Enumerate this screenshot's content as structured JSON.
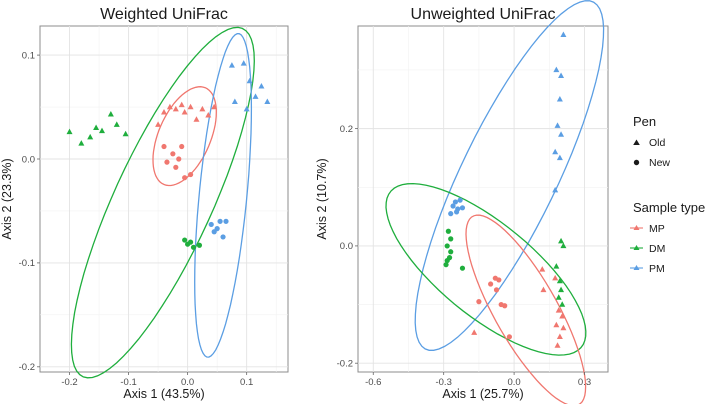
{
  "colors": {
    "MP": "#f0776f",
    "DM": "#1fae3d",
    "PM": "#5b9ee3"
  },
  "legend": {
    "pen_title": "Pen",
    "pen_items": [
      {
        "label": "Old",
        "shape": "triangle"
      },
      {
        "label": "New",
        "shape": "circle"
      }
    ],
    "type_title": "Sample type",
    "type_items": [
      {
        "label": "MP",
        "key": "MP"
      },
      {
        "label": "DM",
        "key": "DM"
      },
      {
        "label": "PM",
        "key": "PM"
      }
    ]
  },
  "chart_data": [
    {
      "type": "scatter",
      "title": "Weighted UniFrac",
      "xlabel": "Axis 1 (43.5%)",
      "ylabel": "Axis 2 (23.3%)",
      "xlim": [
        -0.25,
        0.17
      ],
      "ylim": [
        -0.205,
        0.128
      ],
      "xticks": [
        -0.2,
        -0.1,
        0.0,
        0.1
      ],
      "xticklabels": [
        "-0.2",
        "-0.1",
        "0.0",
        "0.1"
      ],
      "yticks": [
        -0.2,
        -0.1,
        0.0,
        0.1
      ],
      "yticklabels": [
        "-0.2",
        "-0.1",
        "0.0",
        "0.1"
      ],
      "ellipses": [
        {
          "group": "DM",
          "cx": -0.042,
          "cy": -0.042,
          "rx": 0.218,
          "ry": 0.07,
          "angle": 48
        },
        {
          "group": "MP",
          "cx": -0.005,
          "cy": 0.022,
          "rx": 0.062,
          "ry": 0.036,
          "angle": 38
        },
        {
          "group": "PM",
          "cx": 0.06,
          "cy": -0.035,
          "rx": 0.158,
          "ry": 0.04,
          "angle": 80
        }
      ],
      "points": [
        {
          "group": "DM",
          "pen": "Old",
          "x": -0.2,
          "y": 0.026
        },
        {
          "group": "DM",
          "pen": "Old",
          "x": -0.18,
          "y": 0.015
        },
        {
          "group": "DM",
          "pen": "Old",
          "x": -0.165,
          "y": 0.021
        },
        {
          "group": "DM",
          "pen": "Old",
          "x": -0.155,
          "y": 0.03
        },
        {
          "group": "DM",
          "pen": "Old",
          "x": -0.145,
          "y": 0.027
        },
        {
          "group": "DM",
          "pen": "Old",
          "x": -0.13,
          "y": 0.043
        },
        {
          "group": "DM",
          "pen": "Old",
          "x": -0.12,
          "y": 0.033
        },
        {
          "group": "DM",
          "pen": "Old",
          "x": -0.105,
          "y": 0.024
        },
        {
          "group": "DM",
          "pen": "New",
          "x": -0.005,
          "y": -0.078
        },
        {
          "group": "DM",
          "pen": "New",
          "x": 0.0,
          "y": -0.082
        },
        {
          "group": "DM",
          "pen": "New",
          "x": 0.005,
          "y": -0.08
        },
        {
          "group": "DM",
          "pen": "New",
          "x": 0.01,
          "y": -0.085
        },
        {
          "group": "DM",
          "pen": "New",
          "x": 0.02,
          "y": -0.083
        },
        {
          "group": "MP",
          "pen": "Old",
          "x": -0.05,
          "y": 0.033
        },
        {
          "group": "MP",
          "pen": "Old",
          "x": -0.04,
          "y": 0.045
        },
        {
          "group": "MP",
          "pen": "Old",
          "x": -0.03,
          "y": 0.05
        },
        {
          "group": "MP",
          "pen": "Old",
          "x": -0.02,
          "y": 0.048
        },
        {
          "group": "MP",
          "pen": "Old",
          "x": -0.01,
          "y": 0.052
        },
        {
          "group": "MP",
          "pen": "Old",
          "x": -0.005,
          "y": 0.045
        },
        {
          "group": "MP",
          "pen": "Old",
          "x": 0.005,
          "y": 0.05
        },
        {
          "group": "MP",
          "pen": "Old",
          "x": 0.015,
          "y": 0.038
        },
        {
          "group": "MP",
          "pen": "Old",
          "x": 0.025,
          "y": 0.048
        },
        {
          "group": "MP",
          "pen": "Old",
          "x": 0.035,
          "y": 0.042
        },
        {
          "group": "MP",
          "pen": "Old",
          "x": 0.045,
          "y": 0.05
        },
        {
          "group": "MP",
          "pen": "New",
          "x": -0.04,
          "y": 0.012
        },
        {
          "group": "MP",
          "pen": "New",
          "x": -0.035,
          "y": -0.003
        },
        {
          "group": "MP",
          "pen": "New",
          "x": -0.025,
          "y": 0.005
        },
        {
          "group": "MP",
          "pen": "New",
          "x": -0.02,
          "y": -0.008
        },
        {
          "group": "MP",
          "pen": "New",
          "x": -0.015,
          "y": 0.0
        },
        {
          "group": "MP",
          "pen": "New",
          "x": -0.01,
          "y": 0.012
        },
        {
          "group": "MP",
          "pen": "New",
          "x": 0.005,
          "y": -0.015
        },
        {
          "group": "MP",
          "pen": "New",
          "x": -0.005,
          "y": -0.018
        },
        {
          "group": "PM",
          "pen": "Old",
          "x": 0.075,
          "y": 0.09
        },
        {
          "group": "PM",
          "pen": "Old",
          "x": 0.08,
          "y": 0.055
        },
        {
          "group": "PM",
          "pen": "Old",
          "x": 0.095,
          "y": 0.092
        },
        {
          "group": "PM",
          "pen": "Old",
          "x": 0.105,
          "y": 0.075
        },
        {
          "group": "PM",
          "pen": "Old",
          "x": 0.115,
          "y": 0.06
        },
        {
          "group": "PM",
          "pen": "Old",
          "x": 0.125,
          "y": 0.07
        },
        {
          "group": "PM",
          "pen": "Old",
          "x": 0.135,
          "y": 0.055
        },
        {
          "group": "PM",
          "pen": "Old",
          "x": 0.1,
          "y": 0.048
        },
        {
          "group": "PM",
          "pen": "New",
          "x": 0.04,
          "y": -0.063
        },
        {
          "group": "PM",
          "pen": "New",
          "x": 0.045,
          "y": -0.07
        },
        {
          "group": "PM",
          "pen": "New",
          "x": 0.05,
          "y": -0.067
        },
        {
          "group": "PM",
          "pen": "New",
          "x": 0.055,
          "y": -0.06
        },
        {
          "group": "PM",
          "pen": "New",
          "x": 0.06,
          "y": -0.075
        },
        {
          "group": "PM",
          "pen": "New",
          "x": 0.065,
          "y": -0.06
        }
      ]
    },
    {
      "type": "scatter",
      "title": "Unweighted UniFrac",
      "xlabel": "Axis 1 (25.7%)",
      "ylabel": "Axis 2 (10.7%)",
      "xlim": [
        -0.665,
        0.4
      ],
      "ylim": [
        -0.215,
        0.375
      ],
      "xticks": [
        -0.6,
        -0.3,
        0.0,
        0.3
      ],
      "xticklabels": [
        "-0.6",
        "-0.3",
        "0.0",
        "0.3"
      ],
      "yticks": [
        -0.2,
        0.0,
        0.2
      ],
      "yticklabels": [
        "-0.2",
        "0.0",
        "0.2"
      ],
      "ellipses": [
        {
          "group": "PM",
          "cx": -0.02,
          "cy": 0.12,
          "rx": 0.48,
          "ry": 0.14,
          "angle": 35
        },
        {
          "group": "DM",
          "cx": -0.12,
          "cy": -0.04,
          "rx": 0.44,
          "ry": 0.095,
          "angle": -15
        },
        {
          "group": "MP",
          "cx": 0.05,
          "cy": -0.11,
          "rx": 0.29,
          "ry": 0.085,
          "angle": -30
        }
      ],
      "points": [
        {
          "group": "PM",
          "pen": "Old",
          "x": 0.21,
          "y": 0.36
        },
        {
          "group": "PM",
          "pen": "Old",
          "x": 0.18,
          "y": 0.3
        },
        {
          "group": "PM",
          "pen": "Old",
          "x": 0.2,
          "y": 0.29
        },
        {
          "group": "PM",
          "pen": "Old",
          "x": 0.195,
          "y": 0.25
        },
        {
          "group": "PM",
          "pen": "Old",
          "x": 0.185,
          "y": 0.205
        },
        {
          "group": "PM",
          "pen": "Old",
          "x": 0.2,
          "y": 0.19
        },
        {
          "group": "PM",
          "pen": "Old",
          "x": 0.175,
          "y": 0.16
        },
        {
          "group": "PM",
          "pen": "Old",
          "x": 0.195,
          "y": 0.15
        },
        {
          "group": "PM",
          "pen": "Old",
          "x": 0.175,
          "y": 0.095
        },
        {
          "group": "PM",
          "pen": "New",
          "x": -0.25,
          "y": 0.075
        },
        {
          "group": "PM",
          "pen": "New",
          "x": -0.23,
          "y": 0.078
        },
        {
          "group": "PM",
          "pen": "New",
          "x": -0.26,
          "y": 0.068
        },
        {
          "group": "PM",
          "pen": "New",
          "x": -0.24,
          "y": 0.063
        },
        {
          "group": "PM",
          "pen": "New",
          "x": -0.22,
          "y": 0.065
        },
        {
          "group": "PM",
          "pen": "New",
          "x": -0.27,
          "y": 0.055
        },
        {
          "group": "PM",
          "pen": "New",
          "x": -0.245,
          "y": 0.058
        },
        {
          "group": "DM",
          "pen": "New",
          "x": -0.28,
          "y": 0.025
        },
        {
          "group": "DM",
          "pen": "New",
          "x": -0.27,
          "y": 0.012
        },
        {
          "group": "DM",
          "pen": "New",
          "x": -0.285,
          "y": 0.0
        },
        {
          "group": "DM",
          "pen": "New",
          "x": -0.27,
          "y": -0.01
        },
        {
          "group": "DM",
          "pen": "New",
          "x": -0.275,
          "y": -0.02
        },
        {
          "group": "DM",
          "pen": "New",
          "x": -0.285,
          "y": -0.025
        },
        {
          "group": "DM",
          "pen": "New",
          "x": -0.29,
          "y": -0.032
        },
        {
          "group": "DM",
          "pen": "New",
          "x": -0.22,
          "y": -0.038
        },
        {
          "group": "DM",
          "pen": "Old",
          "x": 0.2,
          "y": 0.008
        },
        {
          "group": "DM",
          "pen": "Old",
          "x": 0.21,
          "y": 0.0
        },
        {
          "group": "DM",
          "pen": "Old",
          "x": 0.18,
          "y": -0.035
        },
        {
          "group": "DM",
          "pen": "Old",
          "x": 0.195,
          "y": -0.06
        },
        {
          "group": "DM",
          "pen": "Old",
          "x": 0.2,
          "y": -0.075
        },
        {
          "group": "DM",
          "pen": "Old",
          "x": 0.19,
          "y": -0.088
        },
        {
          "group": "DM",
          "pen": "Old",
          "x": 0.205,
          "y": -0.1
        },
        {
          "group": "MP",
          "pen": "New",
          "x": -0.1,
          "y": -0.065
        },
        {
          "group": "MP",
          "pen": "New",
          "x": -0.08,
          "y": -0.055
        },
        {
          "group": "MP",
          "pen": "New",
          "x": -0.065,
          "y": -0.058
        },
        {
          "group": "MP",
          "pen": "New",
          "x": -0.15,
          "y": -0.095
        },
        {
          "group": "MP",
          "pen": "New",
          "x": -0.055,
          "y": -0.1
        },
        {
          "group": "MP",
          "pen": "New",
          "x": -0.075,
          "y": -0.075
        },
        {
          "group": "MP",
          "pen": "New",
          "x": -0.02,
          "y": -0.155
        },
        {
          "group": "MP",
          "pen": "New",
          "x": -0.04,
          "y": -0.102
        },
        {
          "group": "MP",
          "pen": "Old",
          "x": 0.12,
          "y": -0.04
        },
        {
          "group": "MP",
          "pen": "Old",
          "x": 0.125,
          "y": -0.075
        },
        {
          "group": "MP",
          "pen": "Old",
          "x": -0.17,
          "y": -0.148
        },
        {
          "group": "MP",
          "pen": "Old",
          "x": 0.175,
          "y": -0.055
        },
        {
          "group": "MP",
          "pen": "Old",
          "x": 0.19,
          "y": -0.11
        },
        {
          "group": "MP",
          "pen": "Old",
          "x": 0.205,
          "y": -0.12
        },
        {
          "group": "MP",
          "pen": "Old",
          "x": 0.18,
          "y": -0.135
        },
        {
          "group": "MP",
          "pen": "Old",
          "x": 0.21,
          "y": -0.14
        },
        {
          "group": "MP",
          "pen": "Old",
          "x": 0.195,
          "y": -0.155
        },
        {
          "group": "MP",
          "pen": "Old",
          "x": 0.185,
          "y": -0.17
        }
      ]
    }
  ]
}
